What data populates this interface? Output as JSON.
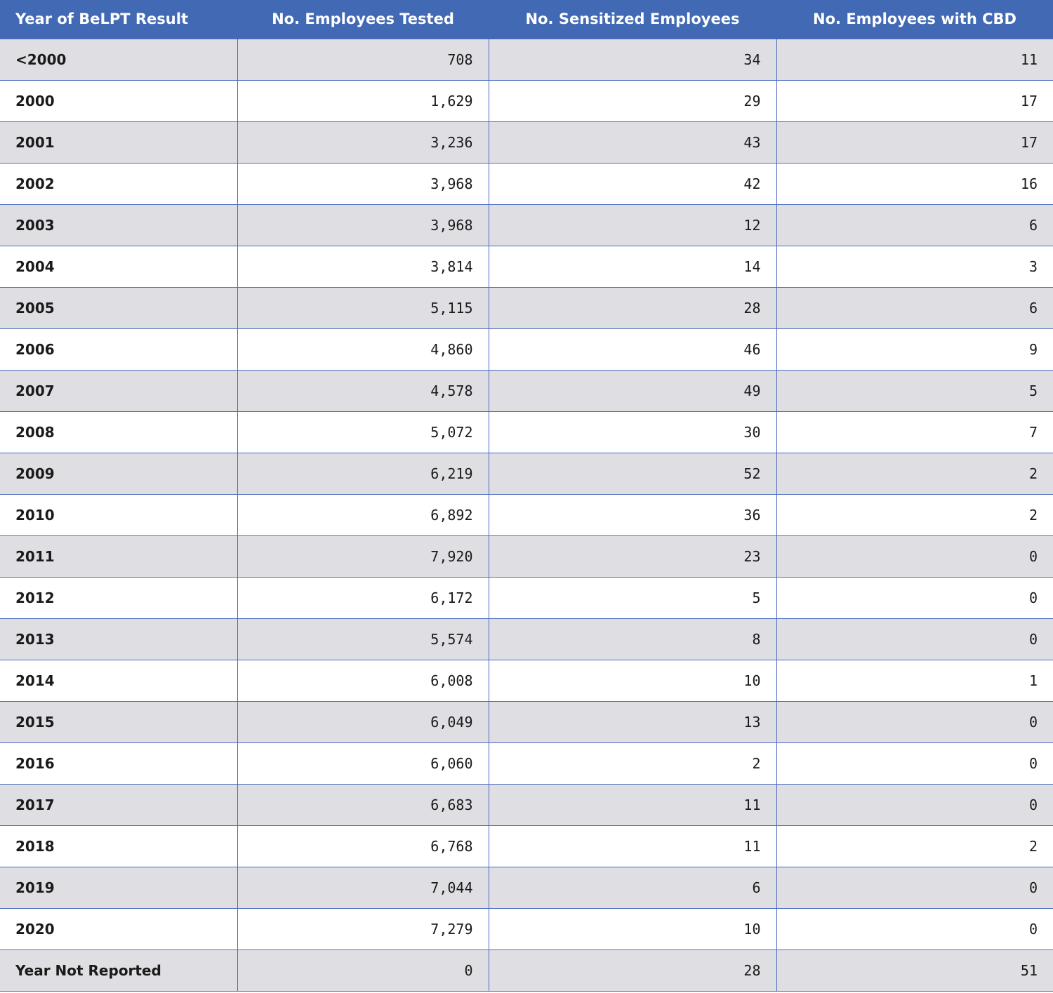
{
  "header": {
    "col1": "Year of BeLPT Result",
    "col2": "No. Employees Tested",
    "col3": "No. Sensitized Employees",
    "col4": "No. Employees with CBD"
  },
  "rows": [
    {
      "year": "<2000",
      "tested": "708",
      "sensitized": "34",
      "cbd": "11"
    },
    {
      "year": "2000",
      "tested": "1,629",
      "sensitized": "29",
      "cbd": "17"
    },
    {
      "year": "2001",
      "tested": "3,236",
      "sensitized": "43",
      "cbd": "17"
    },
    {
      "year": "2002",
      "tested": "3,968",
      "sensitized": "42",
      "cbd": "16"
    },
    {
      "year": "2003",
      "tested": "3,968",
      "sensitized": "12",
      "cbd": "6"
    },
    {
      "year": "2004",
      "tested": "3,814",
      "sensitized": "14",
      "cbd": "3"
    },
    {
      "year": "2005",
      "tested": "5,115",
      "sensitized": "28",
      "cbd": "6"
    },
    {
      "year": "2006",
      "tested": "4,860",
      "sensitized": "46",
      "cbd": "9"
    },
    {
      "year": "2007",
      "tested": "4,578",
      "sensitized": "49",
      "cbd": "5"
    },
    {
      "year": "2008",
      "tested": "5,072",
      "sensitized": "30",
      "cbd": "7"
    },
    {
      "year": "2009",
      "tested": "6,219",
      "sensitized": "52",
      "cbd": "2"
    },
    {
      "year": "2010",
      "tested": "6,892",
      "sensitized": "36",
      "cbd": "2"
    },
    {
      "year": "2011",
      "tested": "7,920",
      "sensitized": "23",
      "cbd": "0"
    },
    {
      "year": "2012",
      "tested": "6,172",
      "sensitized": "5",
      "cbd": "0"
    },
    {
      "year": "2013",
      "tested": "5,574",
      "sensitized": "8",
      "cbd": "0"
    },
    {
      "year": "2014",
      "tested": "6,008",
      "sensitized": "10",
      "cbd": "1"
    },
    {
      "year": "2015",
      "tested": "6,049",
      "sensitized": "13",
      "cbd": "0"
    },
    {
      "year": "2016",
      "tested": "6,060",
      "sensitized": "2",
      "cbd": "0"
    },
    {
      "year": "2017",
      "tested": "6,683",
      "sensitized": "11",
      "cbd": "0"
    },
    {
      "year": "2018",
      "tested": "6,768",
      "sensitized": "11",
      "cbd": "2"
    },
    {
      "year": "2019",
      "tested": "7,044",
      "sensitized": "6",
      "cbd": "0"
    },
    {
      "year": "2020",
      "tested": "7,279",
      "sensitized": "10",
      "cbd": "0"
    },
    {
      "year": "Year Not Reported",
      "tested": "0",
      "sensitized": "28",
      "cbd": "51"
    }
  ],
  "colors": {
    "header_bg": "#4169b4",
    "header_text": "#ffffff",
    "row_shaded": "#dfdfe3",
    "row_plain": "#ffffff",
    "grid_line": "#4a6bbf"
  }
}
